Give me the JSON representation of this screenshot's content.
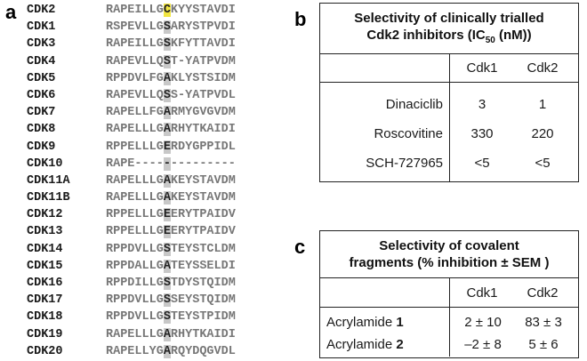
{
  "panel_a": {
    "label": "a",
    "rows": [
      {
        "name": "CDK2",
        "pre": "RAPEILLG",
        "res": "C",
        "post": "KYYSTAVDI",
        "yellow": true
      },
      {
        "name": "CDK1",
        "pre": "RSPEVLLG",
        "res": "S",
        "post": "ARYSTPVDI"
      },
      {
        "name": "CDK3",
        "pre": "RAPEILLG",
        "res": "S",
        "post": "KFYTTAVDI"
      },
      {
        "name": "CDK4",
        "pre": "RAPEVLLQ",
        "res": "S",
        "post": "T-YATPVDM"
      },
      {
        "name": "CDK5",
        "pre": "RPPDVLFG",
        "res": "A",
        "post": "KLYSTSIDM"
      },
      {
        "name": "CDK6",
        "pre": "RAPEVLLQ",
        "res": "S",
        "post": "S-YATPVDL"
      },
      {
        "name": "CDK7",
        "pre": "RAPELLFG",
        "res": "A",
        "post": "RMYGVGVDM"
      },
      {
        "name": "CDK8",
        "pre": "RAPELLLG",
        "res": "A",
        "post": "RHYTKAIDI"
      },
      {
        "name": "CDK9",
        "pre": "RPPELLLG",
        "res": "E",
        "post": "RDYGPPIDL"
      },
      {
        "name": "CDK10",
        "pre": "RAPE----",
        "res": "-",
        "post": "---------"
      },
      {
        "name": "CDK11A",
        "pre": "RAPELLLG",
        "res": "A",
        "post": "KEYSTAVDM"
      },
      {
        "name": "CDK11B",
        "pre": "RAPELLLG",
        "res": "A",
        "post": "KEYSTAVDM"
      },
      {
        "name": "CDK12",
        "pre": "RPPELLLG",
        "res": "E",
        "post": "ERYTPAIDV"
      },
      {
        "name": "CDK13",
        "pre": "RPPELLLG",
        "res": "E",
        "post": "ERYTPAIDV"
      },
      {
        "name": "CDK14",
        "pre": "RPPDVLLG",
        "res": "S",
        "post": "TEYSTCLDM"
      },
      {
        "name": "CDK15",
        "pre": "RPPDALLG",
        "res": "A",
        "post": "TEYSSELDI"
      },
      {
        "name": "CDK16",
        "pre": "RPPDILLG",
        "res": "S",
        "post": "TDYSTQIDM"
      },
      {
        "name": "CDK17",
        "pre": "RPPDVLLG",
        "res": "S",
        "post": "SEYSTQIDM"
      },
      {
        "name": "CDK18",
        "pre": "RPPDVLLG",
        "res": "S",
        "post": "TEYSTPIDM"
      },
      {
        "name": "CDK19",
        "pre": "RAPELLLG",
        "res": "A",
        "post": "RHYTKAIDI"
      },
      {
        "name": "CDK20",
        "pre": "RAPELLYG",
        "res": "A",
        "post": "RQYDQGVDL"
      }
    ]
  },
  "panel_b": {
    "label": "b",
    "title_line1": "Selectivity of clinically trialled",
    "title_line2_pre": "Cdk2 inhibitors (IC",
    "title_line2_sub": "50",
    "title_line2_post": " (nM))",
    "col1": "Cdk1",
    "col2": "Cdk2",
    "rows": [
      {
        "name": "Dinaciclib",
        "v1": "3",
        "v2": "1"
      },
      {
        "name": "Roscovitine",
        "v1": "330",
        "v2": "220"
      },
      {
        "name": "SCH-727965",
        "v1": "<5",
        "v2": "<5"
      }
    ]
  },
  "panel_c": {
    "label": "c",
    "title_line1": "Selectivity of covalent",
    "title_line2": "fragments (% inhibition ± SEM )",
    "col1": "Cdk1",
    "col2": "Cdk2",
    "rows": [
      {
        "name": "Acrylamide ",
        "num": "1",
        "v1": "2 ± 10",
        "v2": "83 ± 3"
      },
      {
        "name": "Acrylamide ",
        "num": "2",
        "v1": "–2 ± 8",
        "v2": "5 ± 6"
      }
    ]
  }
}
